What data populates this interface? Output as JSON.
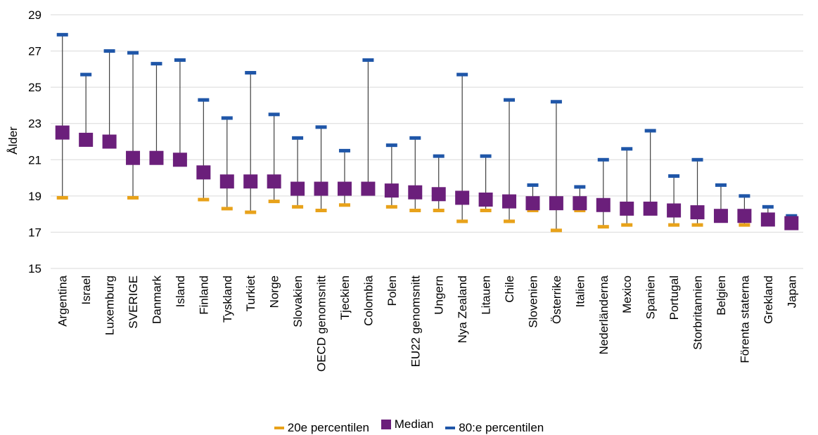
{
  "chart_data": {
    "type": "scatter",
    "title": "",
    "xlabel": "",
    "ylabel": "Ålder",
    "ylim": [
      15,
      29
    ],
    "yticks": [
      15,
      17,
      19,
      21,
      23,
      25,
      27,
      29
    ],
    "grid": true,
    "legend_position": "bottom",
    "categories": [
      "Argentina",
      "Israel",
      "Luxemburg",
      "SVERIGE",
      "Danmark",
      "Island",
      "Finland",
      "Tyskland",
      "Turkiet",
      "Norge",
      "Slovakien",
      "OECD genomsnitt",
      "Tjeckien",
      "Colombia",
      "Polen",
      "EU22 genomsnitt",
      "Ungern",
      "Nya Zealand",
      "Litauen",
      "Chile",
      "Slovenien",
      "Österrike",
      "Italien",
      "Nederländerna",
      "Mexico",
      "Spanien",
      "Portugal",
      "Storbritannien",
      "Belgien",
      "Förenta staterna",
      "Grekland",
      "Japan"
    ],
    "series": [
      {
        "name": "20e percentilen",
        "color": "#E8A21A",
        "values": [
          18.9,
          null,
          null,
          18.9,
          null,
          null,
          18.8,
          18.3,
          18.1,
          18.7,
          18.4,
          18.2,
          18.5,
          null,
          18.4,
          18.2,
          18.2,
          17.6,
          18.2,
          17.6,
          18.2,
          17.1,
          18.2,
          17.3,
          17.4,
          null,
          17.4,
          17.4,
          null,
          17.4,
          null,
          null
        ]
      },
      {
        "name": "Median",
        "color": "#6B1F7B",
        "values": [
          22.5,
          22.1,
          22.0,
          21.1,
          21.1,
          21.0,
          20.3,
          19.8,
          19.8,
          19.8,
          19.4,
          19.4,
          19.4,
          19.4,
          19.3,
          19.2,
          19.1,
          18.9,
          18.8,
          18.7,
          18.6,
          18.6,
          18.6,
          18.5,
          18.3,
          18.3,
          18.2,
          18.1,
          17.9,
          17.9,
          17.7,
          17.5
        ]
      },
      {
        "name": "80:e percentilen",
        "color": "#1F56A8",
        "values": [
          27.9,
          25.7,
          27.0,
          26.9,
          26.3,
          26.5,
          24.3,
          23.3,
          25.8,
          23.5,
          22.2,
          22.8,
          21.5,
          26.5,
          21.8,
          22.2,
          21.2,
          25.7,
          21.2,
          24.3,
          19.6,
          24.2,
          19.5,
          21.0,
          21.6,
          22.6,
          20.1,
          21.0,
          19.6,
          19.0,
          18.4,
          17.9
        ]
      }
    ]
  },
  "axis_color": "#d9d9d9",
  "whisker_color": "#404040"
}
